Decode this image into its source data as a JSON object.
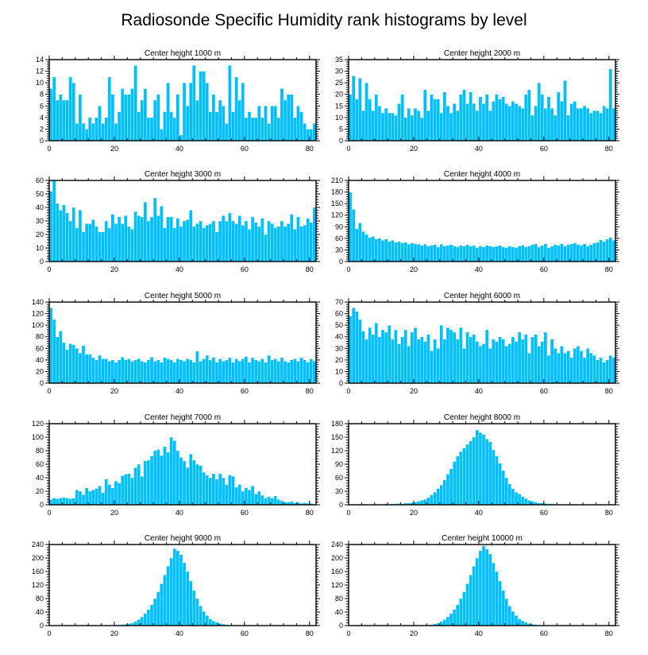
{
  "chart_data": {
    "type": "bar",
    "title": "Radiosonde Specific Humidity rank histograms by level",
    "xlim": [
      0,
      82
    ],
    "xticks": [
      0,
      20,
      40,
      60,
      80
    ],
    "bar_color": "#00bfff",
    "panels": [
      {
        "title": "Center height 1000 m",
        "ylim": [
          0,
          14
        ],
        "yticks": [
          0,
          2,
          4,
          6,
          8,
          10,
          12,
          14
        ],
        "values": [
          9,
          11,
          7,
          8,
          7,
          7,
          11,
          10,
          3,
          8,
          3,
          2,
          4,
          3,
          4,
          6,
          3,
          4,
          11,
          8,
          3,
          5,
          9,
          8,
          8,
          9,
          13,
          5,
          7,
          9,
          4,
          4,
          7,
          8,
          2,
          5,
          10,
          5,
          4,
          8,
          1,
          10,
          6,
          10,
          13,
          7,
          12,
          12,
          10,
          5,
          8,
          5,
          7,
          6,
          3,
          13,
          5,
          11,
          7,
          10,
          4,
          5,
          4,
          4,
          6,
          4,
          6,
          3,
          6,
          6,
          4,
          9,
          7,
          8,
          8,
          4,
          6,
          5,
          3,
          2,
          2,
          3
        ]
      },
      {
        "title": "Center height 2000 m",
        "ylim": [
          0,
          35
        ],
        "yticks": [
          0,
          5,
          10,
          15,
          20,
          25,
          30,
          35
        ],
        "values": [
          20,
          28,
          18,
          27,
          13,
          25,
          18,
          13,
          20,
          15,
          12,
          14,
          12,
          12,
          11,
          16,
          20,
          10,
          14,
          11,
          14,
          13,
          10,
          22,
          13,
          20,
          18,
          18,
          12,
          21,
          15,
          12,
          16,
          13,
          20,
          22,
          16,
          21,
          16,
          13,
          19,
          16,
          20,
          13,
          17,
          20,
          18,
          19,
          16,
          15,
          17,
          16,
          15,
          14,
          20,
          22,
          11,
          15,
          25,
          20,
          14,
          19,
          14,
          11,
          21,
          17,
          26,
          11,
          16,
          17,
          14,
          14,
          15,
          14,
          12,
          13,
          13,
          12,
          15,
          14,
          31,
          14
        ]
      },
      {
        "title": "Center height 3000 m",
        "ylim": [
          0,
          60
        ],
        "yticks": [
          0,
          10,
          20,
          30,
          40,
          50,
          60
        ],
        "values": [
          52,
          60,
          43,
          38,
          42,
          36,
          30,
          40,
          25,
          38,
          22,
          28,
          28,
          31,
          26,
          22,
          22,
          30,
          25,
          35,
          28,
          33,
          28,
          34,
          26,
          24,
          37,
          34,
          33,
          44,
          30,
          33,
          47,
          34,
          41,
          25,
          33,
          33,
          25,
          32,
          26,
          30,
          31,
          38,
          26,
          28,
          30,
          25,
          27,
          28,
          30,
          22,
          30,
          34,
          30,
          36,
          30,
          28,
          34,
          27,
          30,
          24,
          33,
          29,
          26,
          32,
          20,
          30,
          28,
          25,
          26,
          30,
          26,
          28,
          35,
          24,
          33,
          26,
          27,
          32,
          29,
          40
        ]
      },
      {
        "title": "Center height 4000 m",
        "ylim": [
          0,
          210
        ],
        "yticks": [
          0,
          30,
          60,
          90,
          120,
          150,
          180,
          210
        ],
        "values": [
          180,
          135,
          85,
          100,
          78,
          70,
          62,
          65,
          58,
          60,
          55,
          58,
          52,
          55,
          50,
          52,
          48,
          50,
          45,
          48,
          46,
          45,
          42,
          45,
          40,
          42,
          44,
          38,
          45,
          40,
          42,
          44,
          40,
          38,
          42,
          40,
          44,
          40,
          42,
          36,
          40,
          38,
          42,
          40,
          38,
          40,
          42,
          38,
          36,
          40,
          38,
          36,
          40,
          42,
          38,
          40,
          44,
          46,
          38,
          42,
          46,
          36,
          40,
          44,
          42,
          46,
          40,
          44,
          46,
          48,
          44,
          42,
          46,
          40,
          44,
          48,
          50,
          56,
          52,
          58,
          62,
          55
        ]
      },
      {
        "title": "Center height 5000 m",
        "ylim": [
          0,
          140
        ],
        "yticks": [
          0,
          20,
          40,
          60,
          80,
          100,
          120,
          140
        ],
        "values": [
          130,
          110,
          80,
          90,
          70,
          58,
          68,
          66,
          60,
          52,
          65,
          50,
          50,
          44,
          40,
          48,
          42,
          42,
          38,
          40,
          36,
          40,
          45,
          40,
          42,
          38,
          40,
          42,
          38,
          36,
          40,
          45,
          38,
          40,
          36,
          44,
          42,
          40,
          36,
          42,
          40,
          38,
          42,
          40,
          36,
          55,
          38,
          42,
          48,
          40,
          44,
          36,
          42,
          38,
          40,
          44,
          36,
          42,
          38,
          42,
          46,
          36,
          44,
          40,
          38,
          42,
          36,
          48,
          40,
          42,
          38,
          44,
          38,
          36,
          40,
          42,
          38,
          44,
          40,
          36,
          42,
          38
        ]
      },
      {
        "title": "Center height 6000 m",
        "ylim": [
          0,
          70
        ],
        "yticks": [
          0,
          10,
          20,
          30,
          40,
          50,
          60,
          70
        ],
        "values": [
          58,
          65,
          62,
          55,
          45,
          38,
          48,
          42,
          52,
          40,
          46,
          44,
          50,
          38,
          46,
          34,
          40,
          46,
          32,
          44,
          48,
          38,
          40,
          36,
          42,
          28,
          38,
          30,
          50,
          38,
          48,
          46,
          44,
          38,
          48,
          30,
          44,
          40,
          42,
          36,
          32,
          34,
          46,
          30,
          38,
          36,
          40,
          38,
          32,
          34,
          40,
          36,
          44,
          38,
          42,
          26,
          40,
          42,
          32,
          36,
          44,
          24,
          38,
          30,
          26,
          32,
          26,
          28,
          22,
          30,
          32,
          28,
          22,
          30,
          26,
          24,
          20,
          22,
          18,
          20,
          24,
          22
        ]
      },
      {
        "title": "Center height 7000 m",
        "ylim": [
          0,
          120
        ],
        "yticks": [
          0,
          20,
          40,
          60,
          80,
          100,
          120
        ],
        "values": [
          8,
          10,
          9,
          10,
          11,
          10,
          9,
          10,
          22,
          20,
          15,
          25,
          20,
          22,
          24,
          28,
          18,
          38,
          30,
          25,
          35,
          32,
          43,
          45,
          46,
          40,
          55,
          60,
          42,
          65,
          66,
          72,
          80,
          82,
          73,
          86,
          78,
          100,
          95,
          80,
          70,
          65,
          55,
          75,
          66,
          60,
          58,
          48,
          44,
          40,
          46,
          38,
          46,
          40,
          30,
          44,
          42,
          26,
          30,
          20,
          25,
          22,
          28,
          16,
          20,
          14,
          10,
          12,
          10,
          13,
          8,
          6,
          4,
          4,
          5,
          3,
          4,
          2,
          3,
          2,
          2,
          1
        ]
      },
      {
        "title": "Center height 8000 m",
        "ylim": [
          0,
          180
        ],
        "yticks": [
          0,
          30,
          60,
          90,
          120,
          150,
          180
        ],
        "values": [
          0,
          0,
          0,
          0,
          0,
          0,
          0,
          0,
          1,
          1,
          1,
          2,
          1,
          2,
          2,
          3,
          2,
          4,
          4,
          5,
          6,
          8,
          10,
          12,
          16,
          22,
          28,
          36,
          44,
          55,
          68,
          80,
          96,
          108,
          118,
          126,
          134,
          142,
          150,
          166,
          160,
          156,
          146,
          140,
          122,
          108,
          92,
          76,
          60,
          46,
          36,
          28,
          24,
          18,
          14,
          10,
          8,
          6,
          4,
          4,
          3,
          2,
          2,
          1,
          1,
          1,
          0,
          0,
          0,
          0,
          0,
          0,
          0,
          0,
          0,
          0,
          0,
          0,
          0,
          0,
          0,
          0
        ]
      },
      {
        "title": "Center height 9000 m",
        "ylim": [
          0,
          240
        ],
        "yticks": [
          0,
          40,
          80,
          120,
          160,
          200,
          240
        ],
        "values": [
          0,
          0,
          0,
          0,
          0,
          0,
          0,
          0,
          0,
          0,
          0,
          0,
          0,
          0,
          0,
          0,
          0,
          0,
          0,
          0,
          1,
          2,
          3,
          4,
          6,
          8,
          12,
          18,
          26,
          36,
          48,
          62,
          80,
          100,
          124,
          150,
          176,
          200,
          228,
          222,
          210,
          186,
          160,
          132,
          104,
          80,
          58,
          42,
          30,
          20,
          14,
          10,
          6,
          4,
          3,
          2,
          1,
          1,
          0,
          0,
          0,
          0,
          0,
          0,
          0,
          0,
          0,
          0,
          0,
          0,
          0,
          0,
          0,
          0,
          0,
          0,
          0,
          0,
          0,
          0,
          0,
          0
        ]
      },
      {
        "title": "Center height 10000 m",
        "ylim": [
          0,
          240
        ],
        "yticks": [
          0,
          40,
          80,
          120,
          160,
          200,
          240
        ],
        "values": [
          0,
          0,
          0,
          0,
          0,
          0,
          0,
          0,
          0,
          0,
          0,
          0,
          0,
          0,
          0,
          0,
          0,
          0,
          0,
          0,
          0,
          0,
          1,
          1,
          2,
          3,
          5,
          8,
          12,
          18,
          26,
          36,
          48,
          62,
          80,
          100,
          124,
          150,
          176,
          200,
          222,
          236,
          226,
          212,
          186,
          160,
          132,
          104,
          80,
          58,
          42,
          30,
          20,
          14,
          10,
          6,
          4,
          3,
          2,
          1,
          1,
          0,
          0,
          0,
          0,
          0,
          0,
          0,
          0,
          0,
          0,
          0,
          0,
          0,
          0,
          0,
          0,
          0,
          0,
          0,
          0,
          0
        ]
      }
    ]
  }
}
